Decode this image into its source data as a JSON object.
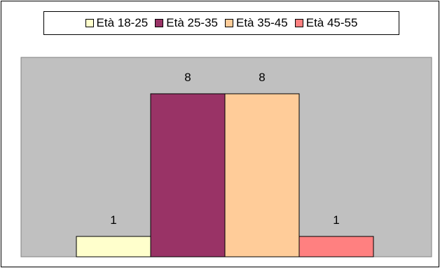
{
  "chart_data": {
    "type": "bar",
    "categories": [
      "Età 18-25",
      "Età 25-35",
      "Età 35-45",
      "Età 45-55"
    ],
    "values": [
      1,
      8,
      8,
      1
    ],
    "title": "",
    "xlabel": "",
    "ylabel": "",
    "ylim": [
      0,
      8
    ],
    "legend": "top",
    "grid": false,
    "colors": [
      "#FFFFCC",
      "#993366",
      "#FFCC99",
      "#FF8080"
    ],
    "plot_background": "#C0C0C0"
  },
  "legend_items": [
    {
      "label": "Età 18-25",
      "color": "#FFFFCC"
    },
    {
      "label": "Età 25-35",
      "color": "#993366"
    },
    {
      "label": "Età 35-45",
      "color": "#FFCC99"
    },
    {
      "label": "Età 45-55",
      "color": "#FF8080"
    }
  ]
}
